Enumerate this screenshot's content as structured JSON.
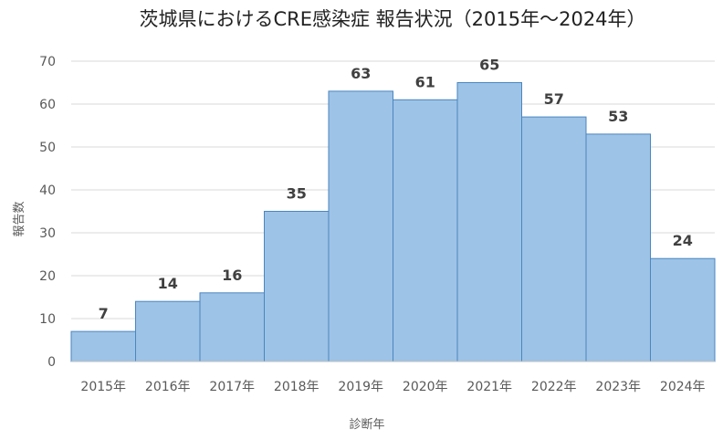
{
  "chart_data": {
    "type": "bar",
    "title": "茨城県におけるCRE感染症 報告状況（2015年～2024年）",
    "xlabel": "診断年",
    "ylabel": "報告数",
    "categories": [
      "2015年",
      "2016年",
      "2017年",
      "2018年",
      "2019年",
      "2020年",
      "2021年",
      "2022年",
      "2023年",
      "2024年"
    ],
    "values": [
      7,
      14,
      16,
      35,
      63,
      61,
      65,
      57,
      53,
      24
    ],
    "ylim": [
      0,
      70
    ],
    "yticks": [
      0,
      10,
      20,
      30,
      40,
      50,
      60,
      70
    ],
    "grid": true,
    "bar_color": "#9dc3e6",
    "bar_edge_color": "#4a86c0",
    "grid_color": "#d9d9d9"
  }
}
